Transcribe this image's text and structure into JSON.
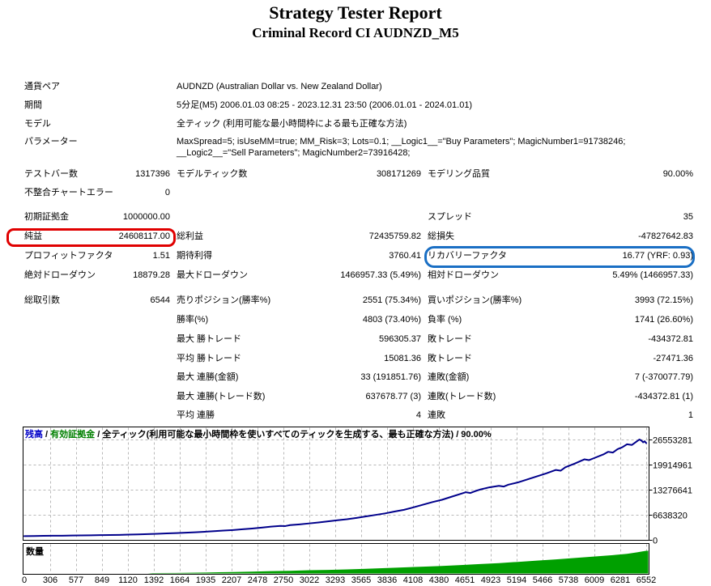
{
  "header": {
    "title": "Strategy Tester Report",
    "subtitle": "Criminal Record CI AUDNZD_M5"
  },
  "info": {
    "rows": [
      {
        "label": "通貨ペア",
        "value": "AUDNZD (Australian Dollar vs. New Zealand Dollar)"
      },
      {
        "label": "期間",
        "value": "5分足(M5) 2006.01.03 08:25 - 2023.12.31 23:50 (2006.01.01 - 2024.01.01)"
      },
      {
        "label": "モデル",
        "value": "全ティック (利用可能な最小時間枠による最も正確な方法)"
      },
      {
        "label": "パラメーター",
        "value": "MaxSpread=5; isUseMM=true; MM_Risk=3; Lots=0.1; __Logic1__=\"Buy Parameters\"; MagicNumber1=91738246; __Logic2__=\"Sell Parameters\"; MagicNumber2=73916428;"
      }
    ]
  },
  "report": {
    "rows": [
      {
        "cells": [
          "テストバー数",
          "1317396",
          "モデルティック数",
          "308171269",
          "モデリング品質",
          "90.00%"
        ]
      },
      {
        "cells": [
          "不整合チャートエラー",
          "0",
          "",
          "",
          "",
          ""
        ]
      },
      {
        "cells": [
          "初期証拠金",
          "1000000.00",
          "",
          "",
          "スプレッド",
          "35"
        ]
      },
      {
        "cells": [
          "純益",
          "24608117.00",
          "総利益",
          "72435759.82",
          "総損失",
          "-47827642.83"
        ]
      },
      {
        "cells": [
          "プロフィットファクタ",
          "1.51",
          "期待利得",
          "3760.41",
          "リカバリーファクタ",
          "16.77 (YRF: 0.93)"
        ]
      },
      {
        "cells": [
          "絶対ドローダウン",
          "18879.28",
          "最大ドローダウン",
          "1466957.33 (5.49%)",
          "相対ドローダウン",
          "5.49% (1466957.33)"
        ]
      },
      {
        "cells": [
          "総取引数",
          "6544",
          "売りポジション(勝率%)",
          "2551 (75.34%)",
          "買いポジション(勝率%)",
          "3993 (72.15%)"
        ]
      },
      {
        "cells": [
          "",
          "",
          "勝率(%)",
          "4803 (73.40%)",
          "負率 (%)",
          "1741 (26.60%)"
        ]
      },
      {
        "cells": [
          "",
          "",
          "最大 勝トレード",
          "596305.37",
          "敗トレード",
          "-434372.81"
        ]
      },
      {
        "cells": [
          "",
          "",
          "平均 勝トレード",
          "15081.36",
          "敗トレード",
          "-27471.36"
        ]
      },
      {
        "cells": [
          "",
          "",
          "最大 連勝(金額)",
          "33 (191851.76)",
          "連敗(金額)",
          "7 (-370077.79)"
        ]
      },
      {
        "cells": [
          "",
          "",
          "最大 連勝(トレード数)",
          "637678.77 (3)",
          "連敗(トレード数)",
          "-434372.81 (1)"
        ]
      },
      {
        "cells": [
          "",
          "",
          "平均 連勝",
          "4",
          "連敗",
          "1"
        ]
      }
    ]
  },
  "highlights": {
    "net_profit_box_color": "#e00000",
    "recovery_factor_box_color": "#1a6fc4"
  },
  "chart_data": [
    {
      "type": "line",
      "title": "残高 / 有効証拠金 / 全ティック(利用可能な最小時間枠を使いすべてのティックを生成する、最も正確な方法) / 90.00%",
      "legend_parts": [
        {
          "text": "残高",
          "color": "#0000c8"
        },
        {
          "text": " / ",
          "color": "#000000"
        },
        {
          "text": "有効証拠金",
          "color": "#008000"
        },
        {
          "text": " / ",
          "color": "#000000"
        },
        {
          "text": "全ティック(利用可能な最小時間枠を使いすべてのティックを生成する、最も正確な方法) / 90.00%",
          "color": "#000000"
        }
      ],
      "grid": true,
      "legend_position": "top-left",
      "xlim": [
        0,
        6552
      ],
      "ylim": [
        0,
        29800000
      ],
      "x_tick_labels": [
        "0",
        "306",
        "577",
        "849",
        "1120",
        "1392",
        "1664",
        "1935",
        "2207",
        "2478",
        "2750",
        "3022",
        "3293",
        "3565",
        "3836",
        "4108",
        "4380",
        "4651",
        "4923",
        "5194",
        "5466",
        "5738",
        "6009",
        "6281",
        "6552"
      ],
      "y_tick_values": [
        26553281,
        19914961,
        13276641,
        6638320,
        0
      ],
      "y_tick_labels": [
        "26553281",
        "19914961",
        "13276641",
        "6638320",
        "0"
      ],
      "series": [
        {
          "name": "残高",
          "color": "#00008b",
          "points": [
            [
              0,
              1000000
            ],
            [
              100,
              1030000
            ],
            [
              200,
              1060000
            ],
            [
              300,
              1090000
            ],
            [
              400,
              1110000
            ],
            [
              500,
              1150000
            ],
            [
              600,
              1180000
            ],
            [
              700,
              1210000
            ],
            [
              800,
              1250000
            ],
            [
              900,
              1280000
            ],
            [
              1000,
              1320000
            ],
            [
              1100,
              1380000
            ],
            [
              1200,
              1450000
            ],
            [
              1300,
              1520000
            ],
            [
              1400,
              1600000
            ],
            [
              1500,
              1700000
            ],
            [
              1600,
              1800000
            ],
            [
              1700,
              1900000
            ],
            [
              1800,
              2000000
            ],
            [
              1900,
              2150000
            ],
            [
              2000,
              2300000
            ],
            [
              2100,
              2450000
            ],
            [
              2200,
              2600000
            ],
            [
              2300,
              2800000
            ],
            [
              2400,
              3000000
            ],
            [
              2500,
              3250000
            ],
            [
              2600,
              3500000
            ],
            [
              2700,
              3700000
            ],
            [
              2750,
              3650000
            ],
            [
              2800,
              3900000
            ],
            [
              2900,
              4100000
            ],
            [
              3000,
              4350000
            ],
            [
              3100,
              4600000
            ],
            [
              3200,
              4900000
            ],
            [
              3300,
              5200000
            ],
            [
              3400,
              5450000
            ],
            [
              3500,
              5800000
            ],
            [
              3600,
              6200000
            ],
            [
              3700,
              6600000
            ],
            [
              3800,
              7000000
            ],
            [
              3900,
              7500000
            ],
            [
              4000,
              7950000
            ],
            [
              4100,
              8600000
            ],
            [
              4200,
              9300000
            ],
            [
              4300,
              10000000
            ],
            [
              4400,
              10600000
            ],
            [
              4500,
              11400000
            ],
            [
              4600,
              12200000
            ],
            [
              4650,
              12600000
            ],
            [
              4700,
              12400000
            ],
            [
              4750,
              12900000
            ],
            [
              4800,
              13300000
            ],
            [
              4900,
              13900000
            ],
            [
              5000,
              14300000
            ],
            [
              5050,
              14100000
            ],
            [
              5100,
              14600000
            ],
            [
              5200,
              15200000
            ],
            [
              5300,
              16000000
            ],
            [
              5400,
              16800000
            ],
            [
              5500,
              17600000
            ],
            [
              5600,
              18500000
            ],
            [
              5650,
              18300000
            ],
            [
              5700,
              19200000
            ],
            [
              5800,
              20200000
            ],
            [
              5900,
              21300000
            ],
            [
              5950,
              21100000
            ],
            [
              6000,
              21600000
            ],
            [
              6100,
              22600000
            ],
            [
              6150,
              23300000
            ],
            [
              6200,
              23100000
            ],
            [
              6250,
              24000000
            ],
            [
              6300,
              24500000
            ],
            [
              6350,
              25300000
            ],
            [
              6400,
              25100000
            ],
            [
              6450,
              26000000
            ],
            [
              6480,
              26553281
            ],
            [
              6500,
              26300000
            ],
            [
              6520,
              25800000
            ],
            [
              6535,
              26100000
            ],
            [
              6552,
              25608117
            ]
          ]
        }
      ]
    },
    {
      "type": "area",
      "label": "数量",
      "color": "#00a000",
      "xlim": [
        0,
        6552
      ],
      "ylim": [
        0,
        30
      ],
      "points": [
        [
          0,
          0
        ],
        [
          1300,
          0
        ],
        [
          1350,
          0.4
        ],
        [
          1600,
          0.6
        ],
        [
          1900,
          1.0
        ],
        [
          2050,
          1.4
        ],
        [
          2200,
          1.6
        ],
        [
          2400,
          2.0
        ],
        [
          2600,
          2.6
        ],
        [
          2800,
          3.0
        ],
        [
          3000,
          3.6
        ],
        [
          3200,
          4.0
        ],
        [
          3400,
          4.6
        ],
        [
          3600,
          5.2
        ],
        [
          3800,
          6.0
        ],
        [
          4000,
          6.8
        ],
        [
          4200,
          7.6
        ],
        [
          4400,
          8.4
        ],
        [
          4600,
          9.4
        ],
        [
          4800,
          10.6
        ],
        [
          5000,
          11.6
        ],
        [
          5200,
          13.0
        ],
        [
          5400,
          14.4
        ],
        [
          5600,
          15.8
        ],
        [
          5800,
          17.4
        ],
        [
          6000,
          19.0
        ],
        [
          6200,
          20.6
        ],
        [
          6350,
          22.0
        ],
        [
          6450,
          23.6
        ],
        [
          6500,
          24.6
        ],
        [
          6552,
          25.4
        ]
      ]
    }
  ]
}
